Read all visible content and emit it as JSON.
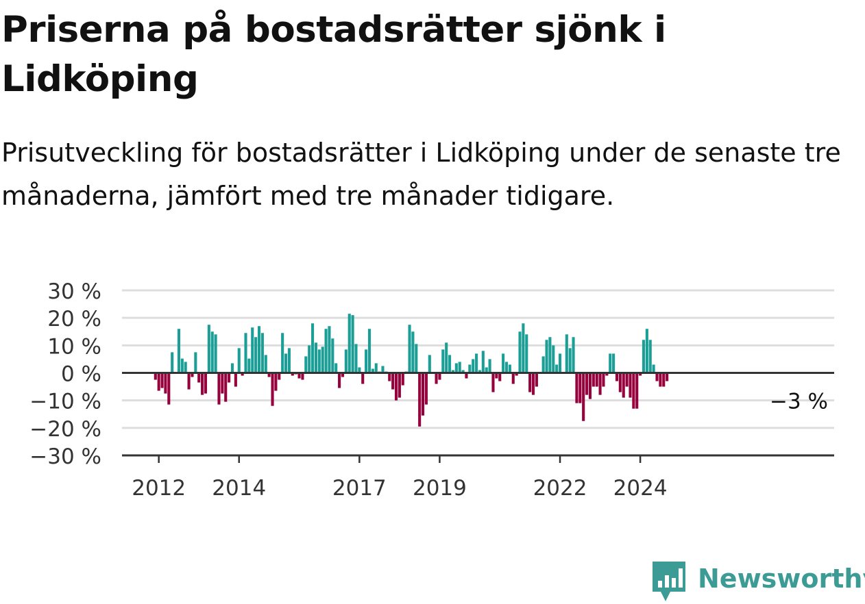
{
  "title": "Priserna på bostadsrätter sjönk i Lidköping",
  "subtitle": "Prisutveckling för bostadsrätter i Lidköping under de senaste tre månaderna, jämfört med tre månader tidigare.",
  "brand": "Newsworthy",
  "colors": {
    "positive": "#1a9e96",
    "negative": "#96003c",
    "grid": "#dddddd",
    "axis": "#333333",
    "brand": "#3d9b95"
  },
  "chart_data": {
    "type": "bar",
    "title": "Priserna på bostadsrätter sjönk i Lidköping",
    "xlabel": "",
    "ylabel": "",
    "ylim": [
      -30,
      30
    ],
    "grid": true,
    "y_ticks": [
      30,
      20,
      10,
      0,
      -10,
      -20,
      -30
    ],
    "y_tick_labels": [
      "30 %",
      "20 %",
      "10 %",
      "0 %",
      "−10 %",
      "−20 %",
      "−30 %"
    ],
    "x_tick_labels": [
      {
        "label": "2012",
        "index": 1
      },
      {
        "label": "2014",
        "index": 25
      },
      {
        "label": "2017",
        "index": 61
      },
      {
        "label": "2019",
        "index": 85
      },
      {
        "label": "2022",
        "index": 121
      },
      {
        "label": "2024",
        "index": 145
      }
    ],
    "annotation": {
      "text": "−3 %",
      "value": -3
    },
    "first_period": "2011-12",
    "last_period": "2024-12",
    "values": [
      -2.5,
      -6.5,
      -5.5,
      -7.5,
      -11.5,
      7.5,
      0,
      16,
      5.2,
      4,
      -6,
      -1.5,
      7.5,
      -3.5,
      -8,
      -7.5,
      17.5,
      15,
      14,
      -11.5,
      -7.5,
      -10.5,
      -3.5,
      3.5,
      -5,
      9,
      -1,
      14.5,
      5.2,
      16.5,
      13,
      17,
      14.5,
      6.5,
      -1.5,
      -12,
      -6.5,
      -2.5,
      14.5,
      7,
      9,
      -1,
      -0.5,
      -2,
      -2.5,
      6,
      10,
      18,
      11,
      8.5,
      9.5,
      16,
      17,
      12.5,
      3.5,
      -5.5,
      -1.5,
      8.5,
      21.5,
      21,
      10.5,
      2,
      -4,
      8.5,
      16,
      1.5,
      3.5,
      0.5,
      2.5,
      0.5,
      -3,
      -6,
      -10,
      -9,
      -4.5,
      0.5,
      17.5,
      15,
      10.5,
      -19.5,
      -15.5,
      -11.5,
      6.5,
      0,
      -4,
      -2.5,
      8.5,
      11,
      6.5,
      1,
      3.5,
      4,
      1,
      -2,
      3,
      5,
      7,
      1,
      8,
      2,
      5,
      -7,
      -2,
      -3,
      7,
      4,
      3,
      -4,
      -1,
      15,
      18,
      14,
      -7,
      -8,
      -5,
      0,
      6,
      12,
      13,
      10,
      3,
      7,
      0,
      14,
      9,
      13,
      -11,
      -11,
      -17.5,
      -8,
      -9.5,
      -5,
      -5,
      -8,
      -5,
      -1,
      7,
      7,
      -3,
      -7,
      -9,
      -5,
      -9,
      -13,
      -13,
      -1,
      12,
      16,
      12,
      3,
      -3,
      -5,
      -5,
      -3
    ]
  }
}
